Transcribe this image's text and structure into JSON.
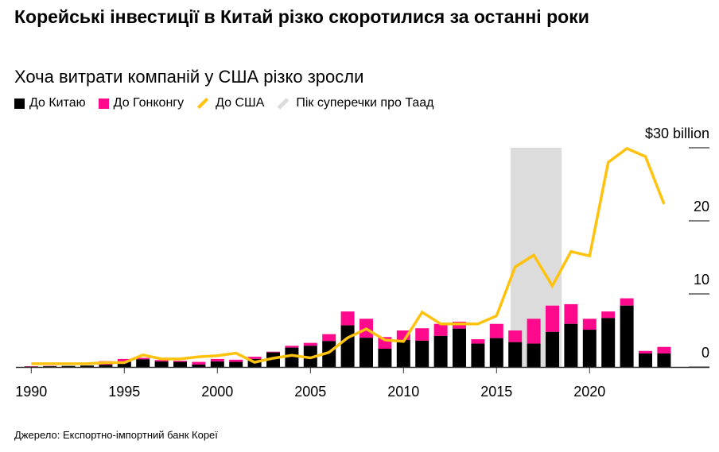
{
  "title": "Корейські інвестиції в Китай різко скоротилися за останні роки",
  "subtitle": "Хоча витрати компаній у США різко зросли",
  "source": "Джерело: Експортно-імпортний банк Кореї",
  "colors": {
    "china": "#000000",
    "hongkong": "#ff0a8c",
    "us": "#ffc20e",
    "band": "#dcdcdc"
  },
  "chart_data": {
    "type": "bar+line",
    "title": "Корейські інвестиції в Китай різко скоротилися за останні роки",
    "subtitle": "Хоча витрати компаній у США різко зросли",
    "legend": [
      "До Китаю",
      "До Гонконгу",
      "До США",
      "Пік суперечки про Таад"
    ],
    "legend_position": "top-left",
    "x": [
      1990,
      1991,
      1992,
      1993,
      1994,
      1995,
      1996,
      1997,
      1998,
      1999,
      2000,
      2001,
      2002,
      2003,
      2004,
      2005,
      2006,
      2007,
      2008,
      2009,
      2010,
      2011,
      2012,
      2013,
      2014,
      2015,
      2016,
      2017,
      2018,
      2019,
      2020,
      2021,
      2022,
      2023,
      2024
    ],
    "xticks": [
      "1990",
      "1995",
      "2000",
      "2005",
      "2010",
      "2015",
      "2020"
    ],
    "yticks": [
      "0",
      "10",
      "20",
      "$30 billion"
    ],
    "ylim": [
      0,
      30
    ],
    "grid": false,
    "series": [
      {
        "name": "До Китаю",
        "type": "stacked-bar",
        "values": [
          0.05,
          0.1,
          0.15,
          0.2,
          0.3,
          0.7,
          1.05,
          0.75,
          0.7,
          0.33,
          0.75,
          0.7,
          1.1,
          2.0,
          2.65,
          2.9,
          3.55,
          5.7,
          4.0,
          2.5,
          3.7,
          3.6,
          4.25,
          5.25,
          3.2,
          3.95,
          3.4,
          3.2,
          4.8,
          5.9,
          5.1,
          6.7,
          8.4,
          1.85,
          1.85
        ]
      },
      {
        "name": "До Гонконгу",
        "type": "stacked-bar",
        "values": [
          0.05,
          0.05,
          0.0,
          0.0,
          0.5,
          0.4,
          0.2,
          0.2,
          0.15,
          0.37,
          0.35,
          0.3,
          0.3,
          0.1,
          0.25,
          0.4,
          0.95,
          1.9,
          2.6,
          1.6,
          1.3,
          1.7,
          1.65,
          0.95,
          0.6,
          1.95,
          1.6,
          3.4,
          3.6,
          2.7,
          1.5,
          0.9,
          1.0,
          0.35,
          0.9
        ]
      },
      {
        "name": "До США",
        "type": "line",
        "values": [
          0.45,
          0.45,
          0.45,
          0.45,
          0.6,
          0.6,
          1.65,
          1.1,
          1.1,
          1.4,
          1.55,
          1.9,
          0.65,
          1.2,
          1.6,
          1.25,
          2.0,
          4.0,
          5.2,
          3.7,
          3.5,
          7.5,
          5.9,
          5.9,
          5.9,
          7.0,
          13.7,
          15.3,
          11.1,
          15.8,
          15.2,
          28.0,
          29.9,
          28.8,
          22.3
        ]
      }
    ],
    "shaded_period": {
      "label": "Пік суперечки про Таад",
      "start": 2015.75,
      "end": 2018.5
    }
  }
}
